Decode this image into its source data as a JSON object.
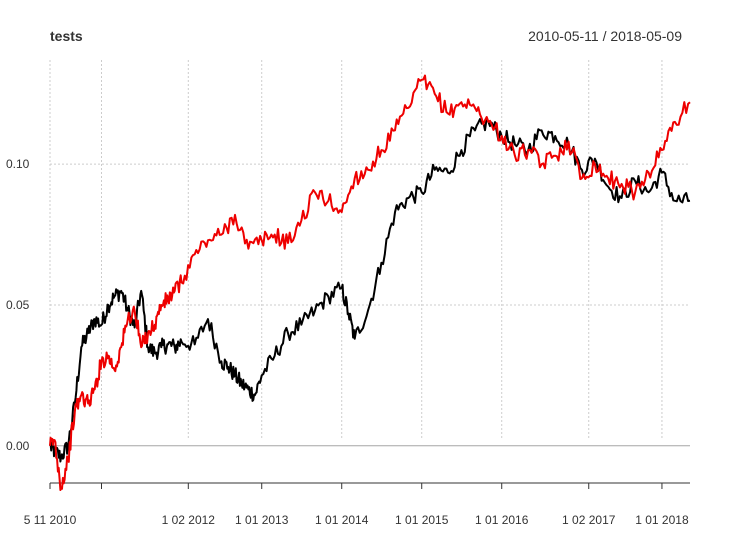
{
  "chart_data": {
    "type": "line",
    "title": "tests",
    "date_range_label": "2010-05-11 / 2018-05-09",
    "x_range": [
      "2010-05-11",
      "2018-05-09"
    ],
    "ylim": [
      -0.015,
      0.137
    ],
    "y_ticks": [
      0.0,
      0.05,
      0.1
    ],
    "y_tick_labels": [
      "0.00",
      "0.05",
      "0.10"
    ],
    "x_ticks": [
      "2010-05-11",
      "2012-02-01",
      "2013-01-01",
      "2014-01-01",
      "2015-01-01",
      "2016-01-01",
      "2017-02-01",
      "2018-01-01"
    ],
    "x_tick_labels": [
      "5 11 2010",
      "1 02 2012",
      "1 01 2013",
      "1 01 2014",
      "1 01 2015",
      "1 01 2016",
      "1 02 2017",
      "1 01 2018"
    ],
    "x_minor_ticks": [
      "2011-01-01"
    ],
    "grid": true,
    "legend": "none",
    "series": [
      {
        "color": "#000000",
        "x": [
          "2010-05-11",
          "2010-06-01",
          "2010-07-01",
          "2010-08-01",
          "2010-09-01",
          "2010-10-01",
          "2010-11-01",
          "2010-12-01",
          "2011-01-01",
          "2011-02-01",
          "2011-03-01",
          "2011-04-01",
          "2011-05-01",
          "2011-06-01",
          "2011-07-01",
          "2011-08-01",
          "2011-09-01",
          "2011-10-01",
          "2011-11-01",
          "2011-12-01",
          "2012-01-01",
          "2012-03-01",
          "2012-05-01",
          "2012-07-01",
          "2012-08-01",
          "2012-09-01",
          "2012-10-01",
          "2012-11-01",
          "2012-12-01",
          "2013-01-01",
          "2013-03-01",
          "2013-05-01",
          "2013-07-01",
          "2013-09-01",
          "2013-11-01",
          "2014-01-01",
          "2014-02-01",
          "2014-03-01",
          "2014-05-01",
          "2014-07-01",
          "2014-09-01",
          "2014-11-01",
          "2015-01-01",
          "2015-03-01",
          "2015-05-01",
          "2015-07-01",
          "2015-09-01",
          "2015-11-01",
          "2016-01-01",
          "2016-03-01",
          "2016-05-01",
          "2016-07-01",
          "2016-09-01",
          "2016-11-01",
          "2017-01-01",
          "2017-03-01",
          "2017-05-01",
          "2017-07-01",
          "2017-09-01",
          "2017-11-01",
          "2018-01-01",
          "2018-03-01",
          "2018-05-09"
        ],
        "values": [
          0.0,
          -0.002,
          -0.004,
          0.0,
          0.015,
          0.035,
          0.04,
          0.045,
          0.043,
          0.05,
          0.053,
          0.055,
          0.048,
          0.042,
          0.055,
          0.035,
          0.033,
          0.035,
          0.036,
          0.035,
          0.037,
          0.036,
          0.045,
          0.03,
          0.028,
          0.025,
          0.022,
          0.02,
          0.018,
          0.025,
          0.032,
          0.04,
          0.043,
          0.048,
          0.053,
          0.056,
          0.047,
          0.038,
          0.048,
          0.065,
          0.083,
          0.088,
          0.09,
          0.098,
          0.097,
          0.105,
          0.112,
          0.115,
          0.11,
          0.107,
          0.105,
          0.112,
          0.11,
          0.107,
          0.098,
          0.102,
          0.092,
          0.088,
          0.094,
          0.09,
          0.097,
          0.087,
          0.087
        ]
      },
      {
        "color": "#ee0000",
        "x": [
          "2010-05-11",
          "2010-06-01",
          "2010-07-01",
          "2010-08-01",
          "2010-09-01",
          "2010-10-01",
          "2010-11-01",
          "2010-12-01",
          "2011-01-01",
          "2011-02-01",
          "2011-03-01",
          "2011-04-01",
          "2011-05-01",
          "2011-06-01",
          "2011-07-01",
          "2011-08-01",
          "2011-09-01",
          "2011-10-01",
          "2011-11-01",
          "2011-12-01",
          "2012-01-01",
          "2012-03-01",
          "2012-05-01",
          "2012-07-01",
          "2012-09-01",
          "2012-11-01",
          "2013-01-01",
          "2013-03-01",
          "2013-05-01",
          "2013-07-01",
          "2013-09-01",
          "2013-11-01",
          "2014-01-01",
          "2014-03-01",
          "2014-05-01",
          "2014-07-01",
          "2014-09-01",
          "2014-11-01",
          "2015-01-01",
          "2015-03-01",
          "2015-05-01",
          "2015-07-01",
          "2015-09-01",
          "2015-11-01",
          "2016-01-01",
          "2016-03-01",
          "2016-05-01",
          "2016-07-01",
          "2016-09-01",
          "2016-11-01",
          "2017-01-01",
          "2017-03-01",
          "2017-05-01",
          "2017-07-01",
          "2017-09-01",
          "2017-11-01",
          "2018-01-01",
          "2018-03-01",
          "2018-05-09"
        ],
        "values": [
          0.0,
          0.002,
          -0.015,
          -0.005,
          0.012,
          0.018,
          0.015,
          0.02,
          0.03,
          0.032,
          0.027,
          0.035,
          0.045,
          0.048,
          0.035,
          0.04,
          0.043,
          0.05,
          0.052,
          0.055,
          0.058,
          0.068,
          0.073,
          0.075,
          0.082,
          0.07,
          0.073,
          0.075,
          0.072,
          0.08,
          0.09,
          0.087,
          0.083,
          0.095,
          0.098,
          0.105,
          0.112,
          0.12,
          0.13,
          0.125,
          0.118,
          0.122,
          0.12,
          0.115,
          0.11,
          0.103,
          0.105,
          0.1,
          0.103,
          0.108,
          0.095,
          0.1,
          0.095,
          0.093,
          0.09,
          0.097,
          0.105,
          0.115,
          0.122
        ]
      }
    ]
  }
}
